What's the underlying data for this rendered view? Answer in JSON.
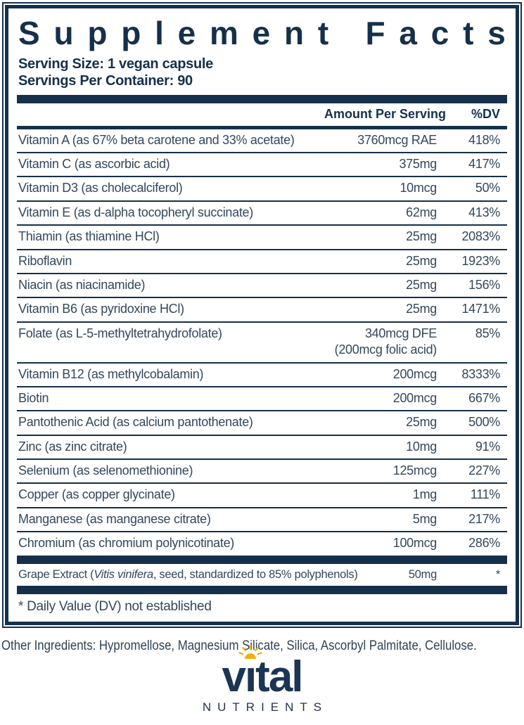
{
  "label": {
    "title": "Supplement Facts",
    "serving_size": "Serving Size: 1 vegan capsule",
    "servings_per_container": "Servings Per Container: 90",
    "columns": {
      "amount": "Amount Per Serving",
      "dv": "%DV"
    },
    "rows": [
      {
        "name": "Vitamin A (as 67% beta carotene and 33% acetate)",
        "amount": "3760mcg RAE",
        "dv": "418%"
      },
      {
        "name": "Vitamin C (as ascorbic acid)",
        "amount": "375mg",
        "dv": "417%"
      },
      {
        "name": "Vitamin D3 (as cholecalciferol)",
        "amount": "10mcg",
        "dv": "50%"
      },
      {
        "name": "Vitamin E (as d-alpha tocopheryl succinate)",
        "amount": "62mg",
        "dv": "413%"
      },
      {
        "name": "Thiamin (as thiamine HCl)",
        "amount": "25mg",
        "dv": "2083%"
      },
      {
        "name": "Riboflavin",
        "amount": "25mg",
        "dv": "1923%"
      },
      {
        "name": "Niacin (as niacinamide)",
        "amount": "25mg",
        "dv": "156%"
      },
      {
        "name": "Vitamin B6 (as pyridoxine HCl)",
        "amount": "25mg",
        "dv": "1471%"
      },
      {
        "name": "Folate (as L-5-methyltetrahydrofolate)",
        "amount": "340mcg DFE",
        "amount2": "(200mcg folic acid)",
        "dv": "85%"
      },
      {
        "name": "Vitamin B12 (as methylcobalamin)",
        "amount": "200mcg",
        "dv": "8333%"
      },
      {
        "name": "Biotin",
        "amount": "200mcg",
        "dv": "667%"
      },
      {
        "name": "Pantothenic Acid (as calcium pantothenate)",
        "amount": "25mg",
        "dv": "500%"
      },
      {
        "name": "Zinc (as zinc citrate)",
        "amount": "10mg",
        "dv": "91%"
      },
      {
        "name": "Selenium (as selenomethionine)",
        "amount": "125mcg",
        "dv": "227%"
      },
      {
        "name": "Copper (as copper glycinate)",
        "amount": "1mg",
        "dv": "111%"
      },
      {
        "name": "Manganese (as manganese citrate)",
        "amount": "5mg",
        "dv": "217%"
      },
      {
        "name": "Chromium (as chromium polynicotinate)",
        "amount": "100mcg",
        "dv": "286%"
      }
    ],
    "extract_row": {
      "name_prefix": "Grape Extract (",
      "name_italic": "Vitis vinifera",
      "name_suffix": ", seed, standardized to 85% polyphenols)",
      "amount": "50mg",
      "dv": "*"
    },
    "footnote": "* Daily Value (DV) not established"
  },
  "other_ingredients": "Other Ingredients: Hypromellose, Magnesium Silicate, Silica, Ascorbyl Palmitate, Cellulose.",
  "logo": {
    "word_start": "v",
    "word_dotless_i": "ı",
    "word_end": "tal",
    "subtext": "NUTRIENTS",
    "sun_icon": "sun-rays-icon"
  },
  "colors": {
    "navy": "#16304b",
    "row_text": "#33475c",
    "sun_yellow": "#eeb211"
  }
}
